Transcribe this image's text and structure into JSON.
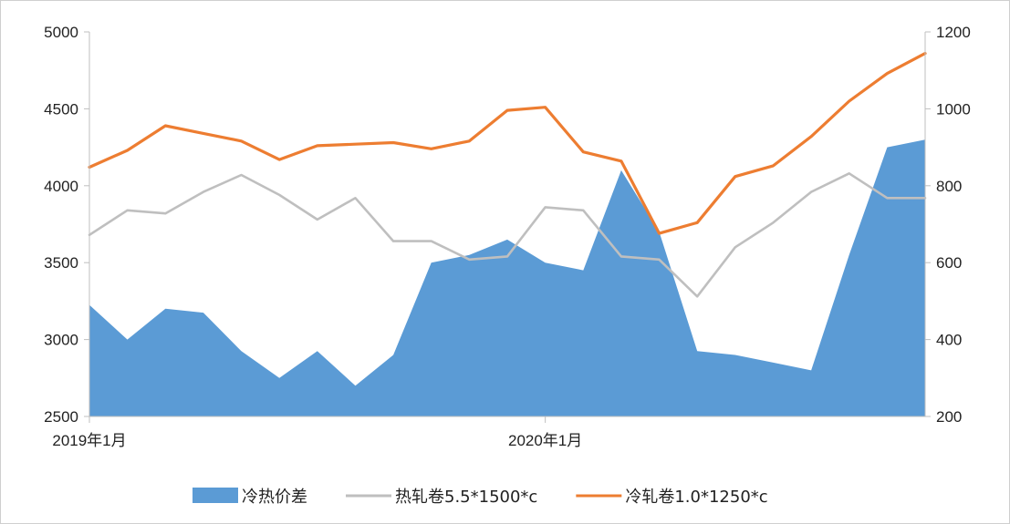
{
  "chart_data": {
    "type": "area",
    "x_tick_labels": [
      "2019年1月",
      "2020年1月"
    ],
    "x_tick_values": [
      "2019-01",
      "2020-01"
    ],
    "x_range": [
      "2019-01",
      "2020-11"
    ],
    "left_axis": {
      "ylim": [
        2500,
        5000
      ],
      "ticks": [
        2500,
        3000,
        3500,
        4000,
        4500,
        5000
      ],
      "tick_labels": [
        "2500",
        "3000",
        "3500",
        "4000",
        "4500",
        "5000"
      ]
    },
    "right_axis": {
      "ylim": [
        200,
        1200
      ],
      "ticks": [
        200,
        400,
        600,
        800,
        1000,
        1200
      ],
      "tick_labels": [
        "200",
        "400",
        "600",
        "800",
        "1000",
        "1200"
      ]
    },
    "grid": false,
    "legend_position": "bottom",
    "x": [
      "2019-01",
      "2019-02",
      "2019-03",
      "2019-04",
      "2019-05",
      "2019-06",
      "2019-07",
      "2019-08",
      "2019-09",
      "2019-10",
      "2019-11",
      "2019-12",
      "2020-01",
      "2020-02",
      "2020-03",
      "2020-04",
      "2020-05",
      "2020-06",
      "2020-07",
      "2020-08",
      "2020-09",
      "2020-10",
      "2020-11"
    ],
    "series": [
      {
        "name": "冷热价差",
        "type": "area",
        "axis": "right",
        "color": "#5b9bd5",
        "values": [
          490,
          400,
          480,
          470,
          370,
          300,
          370,
          280,
          360,
          600,
          620,
          660,
          600,
          580,
          840,
          680,
          370,
          360,
          340,
          320,
          620,
          900,
          920
        ]
      },
      {
        "name": "热轧卷5.5*1500*c",
        "type": "line",
        "axis": "left",
        "color": "#bfbfbf",
        "values": [
          3680,
          3840,
          3820,
          3960,
          4070,
          3940,
          3780,
          3920,
          3640,
          3640,
          3520,
          3540,
          3860,
          3840,
          3540,
          3520,
          3280,
          3600,
          3760,
          3960,
          4080,
          3920,
          3920
        ]
      },
      {
        "name": "冷轧卷1.0*1250*c",
        "type": "line",
        "axis": "left",
        "color": "#ed7d31",
        "values": [
          4120,
          4230,
          4390,
          4340,
          4290,
          4170,
          4260,
          4270,
          4280,
          4240,
          4290,
          4490,
          4510,
          4220,
          4160,
          3690,
          3760,
          4060,
          4130,
          4320,
          4550,
          4730,
          4860
        ]
      }
    ]
  }
}
